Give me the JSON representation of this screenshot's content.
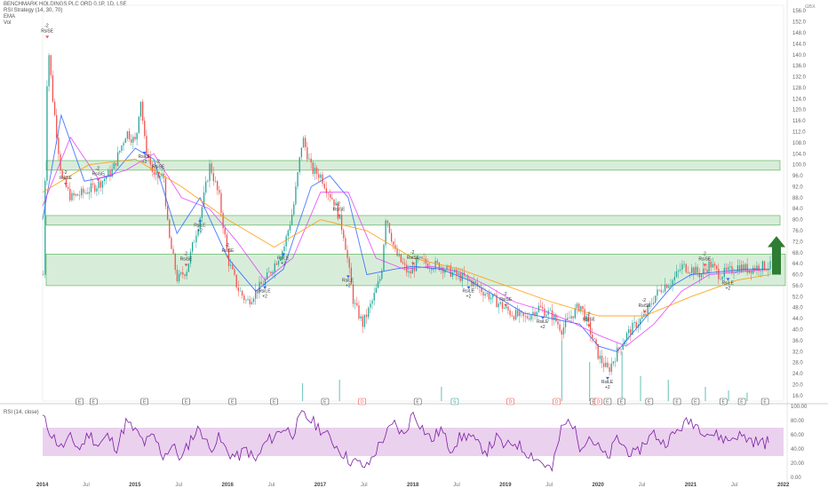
{
  "header": {
    "title": "BENCHMARK HOLDINGS PLC ORD 0.1P, 1D, LSE",
    "indicator1": "RSI Strategy (14, 30, 70)",
    "indicator2": "EMA",
    "indicator3": "Vol"
  },
  "rsi_panel": {
    "label": "RSI (14, close)"
  },
  "currency": "GBX",
  "colors": {
    "candle_up": "#26a69a",
    "candle_down": "#ef5350",
    "ema_fast": "#2962ff",
    "ema_mid": "#e040fb",
    "ema_slow": "#ff9800",
    "zone_fill": "#c8e6c9",
    "zone_border": "#4caf50",
    "rsi_line": "#7b1fa2",
    "rsi_band": "#e1bee7",
    "arrow": "#2e7d32"
  },
  "chart_data": {
    "type": "line",
    "title": "BENCHMARK HOLDINGS PLC ORD 0.1P, 1D, LSE",
    "x_tick_labels": [
      "2014",
      "Jul",
      "2015",
      "Jul",
      "2016",
      "Jul",
      "2017",
      "Jul",
      "2018",
      "Jul",
      "2019",
      "Jul",
      "2020",
      "Jul",
      "2021",
      "Jul",
      "2022"
    ],
    "y_tick_labels": [
      "156.0",
      "152.0",
      "148.0",
      "144.0",
      "140.0",
      "136.0",
      "132.0",
      "128.0",
      "124.0",
      "120.0",
      "116.0",
      "112.0",
      "108.0",
      "104.0",
      "100.0",
      "96.0",
      "92.0",
      "88.0",
      "84.0",
      "80.0",
      "76.0",
      "72.0",
      "68.0",
      "64.0",
      "60.0",
      "56.0",
      "52.0",
      "48.0",
      "44.0",
      "40.0",
      "36.0",
      "32.0",
      "28.0",
      "24.0",
      "20.0",
      "16.0"
    ],
    "ylim": [
      14,
      158
    ],
    "price_series": {
      "name": "close",
      "x": [
        2014.0,
        2014.05,
        2014.1,
        2014.2,
        2014.3,
        2014.45,
        2014.6,
        2014.75,
        2014.9,
        2015.0,
        2015.05,
        2015.1,
        2015.2,
        2015.3,
        2015.35,
        2015.45,
        2015.55,
        2015.7,
        2015.8,
        2015.9,
        2016.0,
        2016.1,
        2016.2,
        2016.3,
        2016.4,
        2016.5,
        2016.6,
        2016.7,
        2016.8,
        2016.9,
        2017.0,
        2017.05,
        2017.15,
        2017.25,
        2017.35,
        2017.45,
        2017.55,
        2017.65,
        2017.7,
        2017.8,
        2017.95,
        2018.05,
        2018.15,
        2018.3,
        2018.45,
        2018.6,
        2018.75,
        2018.9,
        2019.05,
        2019.2,
        2019.35,
        2019.5,
        2019.6,
        2019.7,
        2019.8,
        2019.9,
        2020.0,
        2020.1,
        2020.2,
        2020.3,
        2020.4,
        2020.5,
        2020.6,
        2020.7,
        2020.8,
        2020.9,
        2021.0,
        2021.1,
        2021.2,
        2021.3,
        2021.4,
        2021.5,
        2021.6,
        2021.75,
        2021.85
      ],
      "y": [
        60,
        145,
        125,
        95,
        88,
        90,
        93,
        98,
        112,
        108,
        125,
        107,
        95,
        96,
        75,
        58,
        62,
        82,
        100,
        88,
        65,
        55,
        50,
        54,
        58,
        64,
        70,
        84,
        110,
        98,
        96,
        92,
        86,
        74,
        50,
        42,
        50,
        60,
        82,
        68,
        60,
        65,
        64,
        63,
        60,
        58,
        54,
        50,
        46,
        44,
        48,
        45,
        40,
        45,
        49,
        40,
        30,
        25,
        32,
        38,
        42,
        45,
        52,
        56,
        58,
        63,
        62,
        60,
        64,
        60,
        61,
        63,
        62,
        63,
        63
      ]
    },
    "ema_series": [
      {
        "name": "EMA",
        "x": [
          2014.0,
          2014.2,
          2014.45,
          2014.75,
          2015.0,
          2015.2,
          2015.45,
          2015.7,
          2016.0,
          2016.3,
          2016.6,
          2016.9,
          2017.1,
          2017.3,
          2017.5,
          2017.8,
          2018.0,
          2018.3,
          2018.6,
          2018.9,
          2019.2,
          2019.5,
          2019.8,
          2020.0,
          2020.2,
          2020.5,
          2020.8,
          2021.0,
          2021.3,
          2021.6,
          2021.85
        ],
        "y": [
          80,
          118,
          94,
          96,
          106,
          102,
          75,
          88,
          66,
          54,
          62,
          92,
          96,
          88,
          60,
          62,
          63,
          62,
          58,
          52,
          46,
          44,
          42,
          34,
          32,
          44,
          56,
          60,
          61,
          62,
          62
        ]
      },
      {
        "name": "EMA",
        "x": [
          2014.0,
          2014.3,
          2014.6,
          2014.9,
          2015.2,
          2015.5,
          2015.8,
          2016.1,
          2016.4,
          2016.7,
          2017.0,
          2017.3,
          2017.6,
          2017.9,
          2018.2,
          2018.5,
          2018.8,
          2019.1,
          2019.4,
          2019.7,
          2020.0,
          2020.3,
          2020.6,
          2020.9,
          2021.2,
          2021.5,
          2021.85
        ],
        "y": [
          85,
          110,
          95,
          98,
          104,
          88,
          84,
          72,
          58,
          66,
          90,
          90,
          66,
          62,
          63,
          61,
          56,
          50,
          47,
          43,
          38,
          34,
          42,
          54,
          60,
          61,
          62
        ]
      },
      {
        "name": "EMA",
        "x": [
          2014.0,
          2014.5,
          2015.0,
          2015.5,
          2016.0,
          2016.5,
          2017.0,
          2017.5,
          2018.0,
          2018.5,
          2019.0,
          2019.5,
          2020.0,
          2020.5,
          2021.0,
          2021.5,
          2021.85
        ],
        "y": [
          90,
          100,
          102,
          92,
          80,
          70,
          80,
          76,
          66,
          62,
          56,
          50,
          45,
          45,
          52,
          58,
          60
        ]
      }
    ],
    "zones": [
      {
        "from": 98,
        "to": 100
      },
      {
        "from": 78,
        "to": 80
      },
      {
        "from": 56,
        "to": 66
      }
    ],
    "signal_labels": [
      "RsiSE",
      "RsiSE",
      "RsiSE",
      "RsiLE",
      "RsiSE",
      "RsiSE",
      "RsiLE",
      "RsiSE",
      "RsiLE",
      "RsiLE",
      "RsiSE",
      "RsiLE",
      "RsiSE",
      "RsiLE",
      "RsiSE",
      "RsiLE",
      "RsiSE",
      "RsiLE",
      "RsiSE",
      "RsiSE",
      "RsiLE"
    ],
    "signal_qty": [
      "-2",
      "+2"
    ],
    "rsi": {
      "label": "RSI (14, close)",
      "y_tick_labels": [
        "100.00",
        "80.00",
        "60.00",
        "40.00",
        "20.00",
        "0.00"
      ],
      "ylim": [
        0,
        100
      ],
      "band": [
        30,
        70
      ],
      "x": [
        2014.0,
        2014.1,
        2014.2,
        2014.3,
        2014.4,
        2014.5,
        2014.6,
        2014.7,
        2014.8,
        2014.9,
        2015.0,
        2015.1,
        2015.2,
        2015.3,
        2015.4,
        2015.5,
        2015.6,
        2015.7,
        2015.8,
        2015.9,
        2016.0,
        2016.1,
        2016.2,
        2016.3,
        2016.4,
        2016.5,
        2016.6,
        2016.7,
        2016.8,
        2016.9,
        2017.0,
        2017.1,
        2017.2,
        2017.3,
        2017.4,
        2017.5,
        2017.6,
        2017.7,
        2017.8,
        2017.9,
        2018.0,
        2018.1,
        2018.2,
        2018.3,
        2018.4,
        2018.5,
        2018.6,
        2018.7,
        2018.8,
        2018.9,
        2019.0,
        2019.1,
        2019.2,
        2019.3,
        2019.4,
        2019.5,
        2019.6,
        2019.7,
        2019.8,
        2019.9,
        2020.0,
        2020.1,
        2020.2,
        2020.3,
        2020.4,
        2020.5,
        2020.6,
        2020.7,
        2020.8,
        2020.9,
        2021.0,
        2021.1,
        2021.2,
        2021.3,
        2021.4,
        2021.5,
        2021.6,
        2021.7,
        2021.8,
        2021.85
      ],
      "y": [
        85,
        60,
        42,
        55,
        40,
        62,
        45,
        58,
        42,
        78,
        65,
        48,
        58,
        30,
        45,
        25,
        55,
        70,
        40,
        55,
        35,
        28,
        40,
        22,
        48,
        58,
        70,
        62,
        88,
        80,
        68,
        55,
        40,
        25,
        20,
        14,
        38,
        60,
        75,
        58,
        92,
        70,
        52,
        68,
        40,
        55,
        60,
        45,
        38,
        55,
        42,
        50,
        38,
        30,
        20,
        10,
        68,
        82,
        45,
        58,
        42,
        25,
        55,
        40,
        30,
        50,
        62,
        48,
        58,
        72,
        80,
        70,
        62,
        58,
        52,
        60,
        55,
        50,
        48,
        52
      ]
    },
    "volume_spikes": [
      {
        "x": 2016.8,
        "v": 0.25
      },
      {
        "x": 2017.2,
        "v": 0.3
      },
      {
        "x": 2018.3,
        "v": 0.2
      },
      {
        "x": 2019.6,
        "v": 0.85
      },
      {
        "x": 2019.9,
        "v": 0.55
      },
      {
        "x": 2020.25,
        "v": 0.7
      },
      {
        "x": 2020.45,
        "v": 0.35
      },
      {
        "x": 2020.75,
        "v": 0.3
      },
      {
        "x": 2021.15,
        "v": 0.2
      },
      {
        "x": 2021.4,
        "v": 0.15
      },
      {
        "x": 2021.6,
        "v": 0.12
      }
    ],
    "event_markers": [
      {
        "x": 2014.4,
        "label": "E"
      },
      {
        "x": 2014.55,
        "label": "E"
      },
      {
        "x": 2015.1,
        "label": "E"
      },
      {
        "x": 2015.55,
        "label": "E"
      },
      {
        "x": 2016.05,
        "label": "E"
      },
      {
        "x": 2016.5,
        "label": "E"
      },
      {
        "x": 2017.05,
        "label": "E"
      },
      {
        "x": 2017.45,
        "label": "D"
      },
      {
        "x": 2018.05,
        "label": "E"
      },
      {
        "x": 2018.45,
        "label": "S"
      },
      {
        "x": 2019.05,
        "label": "D"
      },
      {
        "x": 2019.55,
        "label": "D"
      },
      {
        "x": 2019.95,
        "label": "E"
      },
      {
        "x": 2020.0,
        "label": "D"
      },
      {
        "x": 2020.1,
        "label": "E"
      },
      {
        "x": 2020.25,
        "label": "E"
      },
      {
        "x": 2020.55,
        "label": "E"
      },
      {
        "x": 2020.85,
        "label": "E"
      },
      {
        "x": 2021.05,
        "label": "E"
      },
      {
        "x": 2021.35,
        "label": "E"
      },
      {
        "x": 2021.55,
        "label": "E"
      },
      {
        "x": 2021.8,
        "label": "E"
      }
    ]
  }
}
